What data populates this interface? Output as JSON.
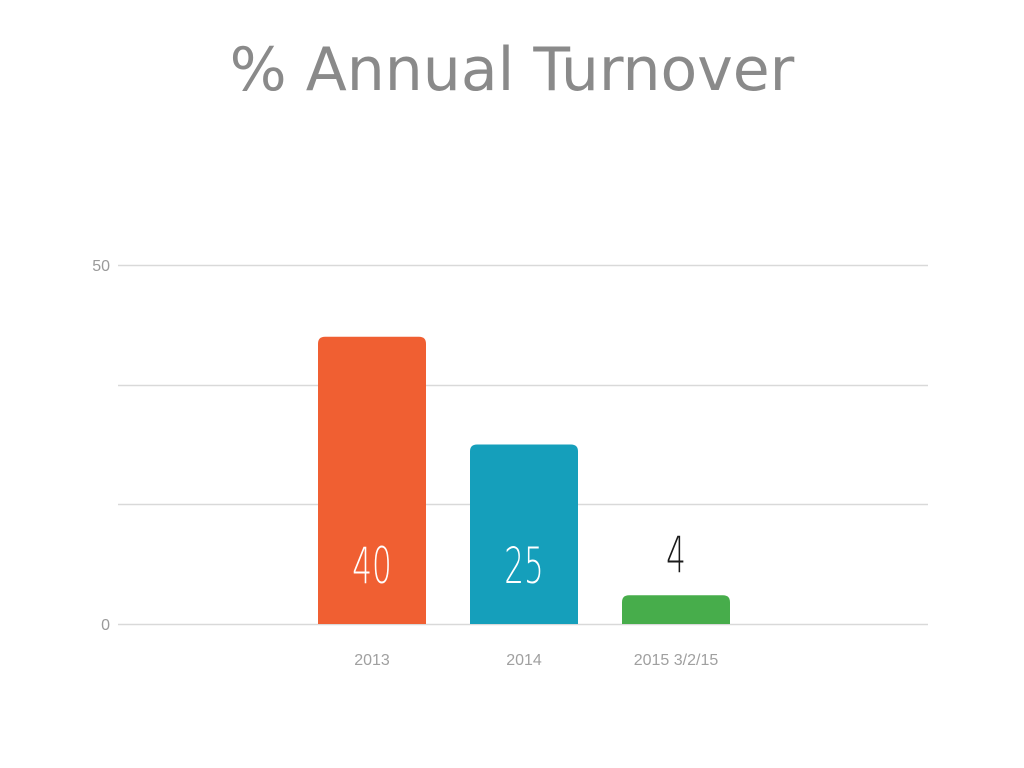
{
  "chart_data": {
    "type": "bar",
    "title": "% Annual Turnover",
    "categories": [
      "2013",
      "2014",
      "2015 3/2/15"
    ],
    "values": [
      40,
      25,
      4
    ],
    "ylim": [
      0,
      50
    ],
    "yticks": [
      "0",
      "50"
    ],
    "grid": true,
    "data_labels": [
      "40",
      "25",
      "4"
    ],
    "colors": [
      "#f05f32",
      "#159fbb",
      "#47ad4b"
    ],
    "label_colors": [
      "#ffffff",
      "#ffffff",
      "#1a1a1a"
    ]
  }
}
